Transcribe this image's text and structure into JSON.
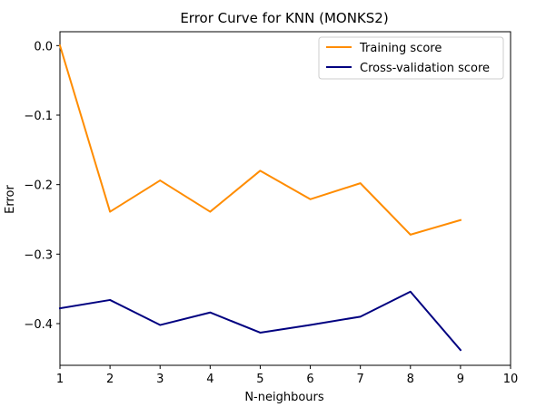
{
  "chart_data": {
    "type": "line",
    "title": "Error Curve for KNN (MONKS2)",
    "xlabel": "N-neighbours",
    "ylabel": "Error",
    "xlim": [
      1,
      10
    ],
    "ylim": [
      -0.46,
      0.02
    ],
    "x_ticks": [
      1,
      2,
      3,
      4,
      5,
      6,
      7,
      8,
      9,
      10
    ],
    "y_ticks": [
      0.0,
      -0.1,
      -0.2,
      -0.3,
      -0.4
    ],
    "y_tick_labels": [
      "0.0",
      "−0.1",
      "−0.2",
      "−0.3",
      "−0.4"
    ],
    "grid": false,
    "legend_position": "top-right",
    "x": [
      1,
      2,
      3,
      4,
      5,
      6,
      7,
      8,
      9
    ],
    "series": [
      {
        "name": "Training score",
        "color": "#ff8c00",
        "values": [
          0.0,
          -0.239,
          -0.194,
          -0.239,
          -0.18,
          -0.221,
          -0.198,
          -0.272,
          -0.251
        ]
      },
      {
        "name": "Cross-validation score",
        "color": "#000080",
        "values": [
          -0.378,
          -0.366,
          -0.402,
          -0.384,
          -0.413,
          -0.402,
          -0.39,
          -0.354,
          -0.438
        ]
      }
    ]
  }
}
